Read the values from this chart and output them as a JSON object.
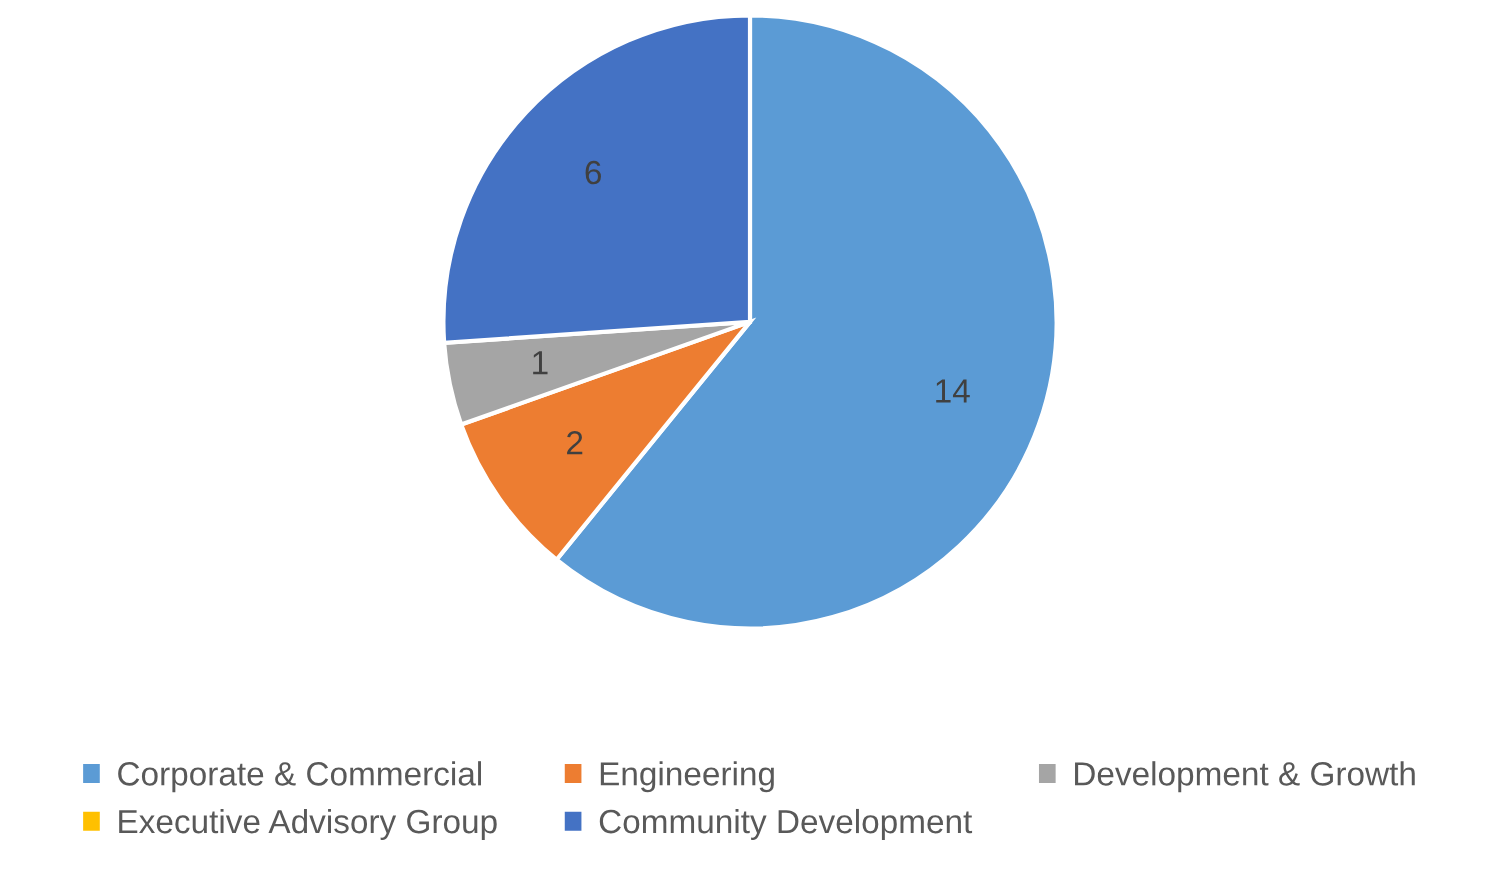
{
  "chart_data": {
    "type": "pie",
    "categories": [
      "Corporate & Commercial",
      "Engineering",
      "Development & Growth",
      "Executive Advisory Group",
      "Community Development"
    ],
    "values": [
      14,
      2,
      1,
      0,
      6
    ],
    "colors": [
      "#5b9bd5",
      "#ed7d31",
      "#a5a5a5",
      "#ffc000",
      "#4472c4"
    ],
    "value_labels": [
      "14",
      "2",
      "1",
      null,
      "6"
    ],
    "legend": "bottom"
  }
}
